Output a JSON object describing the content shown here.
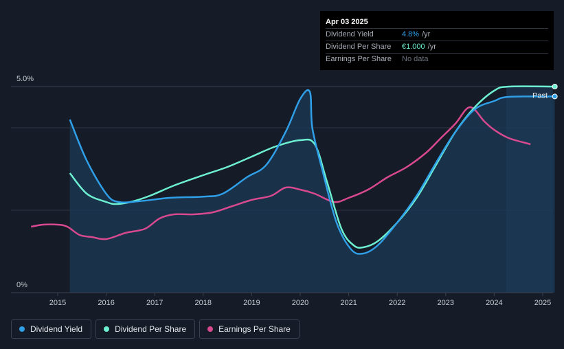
{
  "tooltip": {
    "date": "Apr 03 2025",
    "rows": [
      {
        "label": "Dividend Yield",
        "value": "4.8%",
        "unit": "/yr"
      },
      {
        "label": "Dividend Per Share",
        "value": "€1.000",
        "unit": "/yr"
      },
      {
        "label": "Earnings Per Share",
        "value": "No data"
      }
    ]
  },
  "legend": {
    "items": [
      {
        "label": "Dividend Yield",
        "color": "#2f9fe8"
      },
      {
        "label": "Dividend Per Share",
        "color": "#6df0d2"
      },
      {
        "label": "Earnings Per Share",
        "color": "#d9498f"
      }
    ]
  },
  "colors": {
    "background": "#151b27",
    "grid": "#3a4150",
    "area_fill": "#1b3a55",
    "past_shade": "#1a2f45",
    "dividend_yield": "#2f9fe8",
    "dividend_per_share": "#6df0d2",
    "earnings_per_share": "#d9498f"
  },
  "chart_data": {
    "type": "line",
    "title": "",
    "xlabel": "",
    "ylabel": "",
    "ylim": [
      0,
      5.0
    ],
    "xlim": [
      2014.2,
      2025.25
    ],
    "y_ticks": [
      {
        "value": 5.0,
        "label": "5.0%"
      },
      {
        "value": 0,
        "label": "0%"
      }
    ],
    "gridlines": [
      5.0,
      4.0,
      2.0
    ],
    "x_ticks": [
      2015,
      2016,
      2017,
      2018,
      2019,
      2020,
      2021,
      2022,
      2023,
      2024,
      2025
    ],
    "x_tick_labels": [
      "2015",
      "2016",
      "2017",
      "2018",
      "2019",
      "2020",
      "2021",
      "2022",
      "2023",
      "2024",
      "2025"
    ],
    "past_region_start": 2024.25,
    "past_label": "Past",
    "series": [
      {
        "name": "Dividend Yield",
        "unit": "%",
        "x": [
          2015.25,
          2015.6,
          2016.0,
          2016.25,
          2016.7,
          2017.3,
          2018.0,
          2018.4,
          2018.9,
          2019.3,
          2019.7,
          2020.0,
          2020.2,
          2020.25,
          2020.45,
          2020.75,
          2021.05,
          2021.3,
          2021.6,
          2022.0,
          2022.4,
          2022.8,
          2023.2,
          2023.6,
          2024.0,
          2024.3,
          2025.25
        ],
        "values": [
          4.2,
          3.2,
          2.4,
          2.2,
          2.22,
          2.3,
          2.33,
          2.4,
          2.8,
          3.1,
          3.9,
          4.7,
          4.87,
          4.0,
          3.0,
          1.7,
          1.05,
          0.95,
          1.15,
          1.7,
          2.35,
          3.15,
          3.9,
          4.45,
          4.65,
          4.75,
          4.76
        ]
      },
      {
        "name": "Dividend Per Share",
        "unit": "€",
        "x": [
          2015.25,
          2015.6,
          2016.0,
          2016.2,
          2016.5,
          2016.9,
          2017.4,
          2018.0,
          2018.5,
          2019.0,
          2019.5,
          2020.0,
          2020.3,
          2020.55,
          2020.85,
          2021.1,
          2021.3,
          2021.6,
          2022.0,
          2022.4,
          2022.8,
          2023.2,
          2023.6,
          2024.0,
          2024.3,
          2025.25
        ],
        "values": [
          0.58,
          0.48,
          0.44,
          0.43,
          0.44,
          0.47,
          0.52,
          0.57,
          0.61,
          0.66,
          0.71,
          0.74,
          0.72,
          0.54,
          0.31,
          0.23,
          0.22,
          0.25,
          0.34,
          0.46,
          0.62,
          0.78,
          0.9,
          0.98,
          1.0,
          1.0
        ]
      },
      {
        "name": "Earnings Per Share",
        "unit": "€",
        "x": [
          2014.45,
          2014.7,
          2015.0,
          2015.2,
          2015.45,
          2015.7,
          2016.0,
          2016.4,
          2016.8,
          2017.1,
          2017.4,
          2017.8,
          2018.2,
          2018.6,
          2019.0,
          2019.4,
          2019.7,
          2020.0,
          2020.3,
          2020.7,
          2021.0,
          2021.4,
          2021.8,
          2022.2,
          2022.6,
          2022.9,
          2023.2,
          2023.5,
          2023.8,
          2024.0,
          2024.3,
          2024.75
        ],
        "values": [
          0.32,
          0.33,
          0.33,
          0.32,
          0.28,
          0.27,
          0.26,
          0.29,
          0.31,
          0.36,
          0.38,
          0.38,
          0.39,
          0.42,
          0.45,
          0.47,
          0.51,
          0.5,
          0.48,
          0.44,
          0.46,
          0.5,
          0.56,
          0.61,
          0.68,
          0.75,
          0.82,
          0.9,
          0.83,
          0.79,
          0.75,
          0.72
        ]
      }
    ]
  }
}
